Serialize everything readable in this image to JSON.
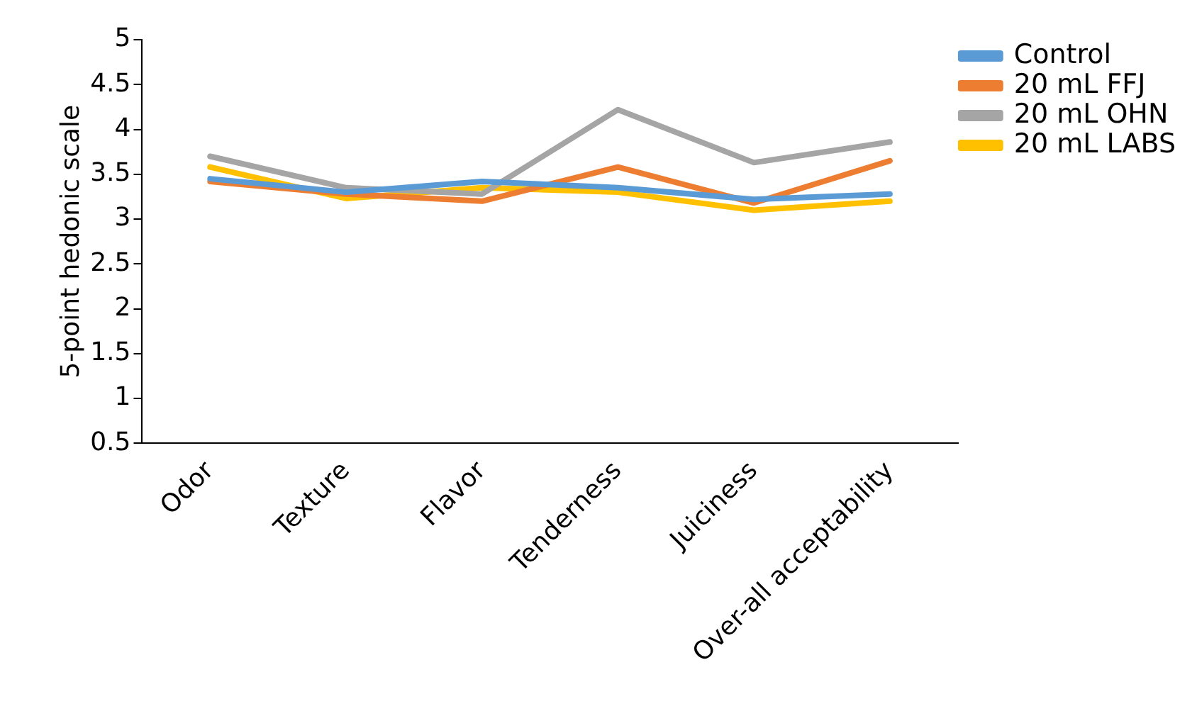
{
  "chart_data": {
    "type": "line",
    "ylabel": "5-point hedonic scale",
    "categories": [
      "Odor",
      "Texture",
      "Flavor",
      "Tenderness",
      "Juiciness",
      "Over-all acceptability"
    ],
    "series": [
      {
        "name": "Control",
        "color": "#5b9bd5",
        "values": [
          3.45,
          3.3,
          3.42,
          3.35,
          3.22,
          3.28
        ]
      },
      {
        "name": "20 mL FFJ",
        "color": "#ed7d31",
        "values": [
          3.42,
          3.28,
          3.2,
          3.58,
          3.18,
          3.65
        ]
      },
      {
        "name": "20 mL OHN",
        "color": "#a5a5a5",
        "values": [
          3.7,
          3.35,
          3.28,
          4.22,
          3.63,
          3.86
        ]
      },
      {
        "name": "20 mL LABS",
        "color": "#ffc000",
        "values": [
          3.58,
          3.23,
          3.35,
          3.3,
          3.1,
          3.2
        ]
      }
    ],
    "ylim": [
      0.5,
      5
    ],
    "yticks": [
      0.5,
      1,
      1.5,
      2,
      2.5,
      3,
      3.5,
      4,
      4.5,
      5
    ],
    "grid": false,
    "legend": "right",
    "marker": "none"
  }
}
